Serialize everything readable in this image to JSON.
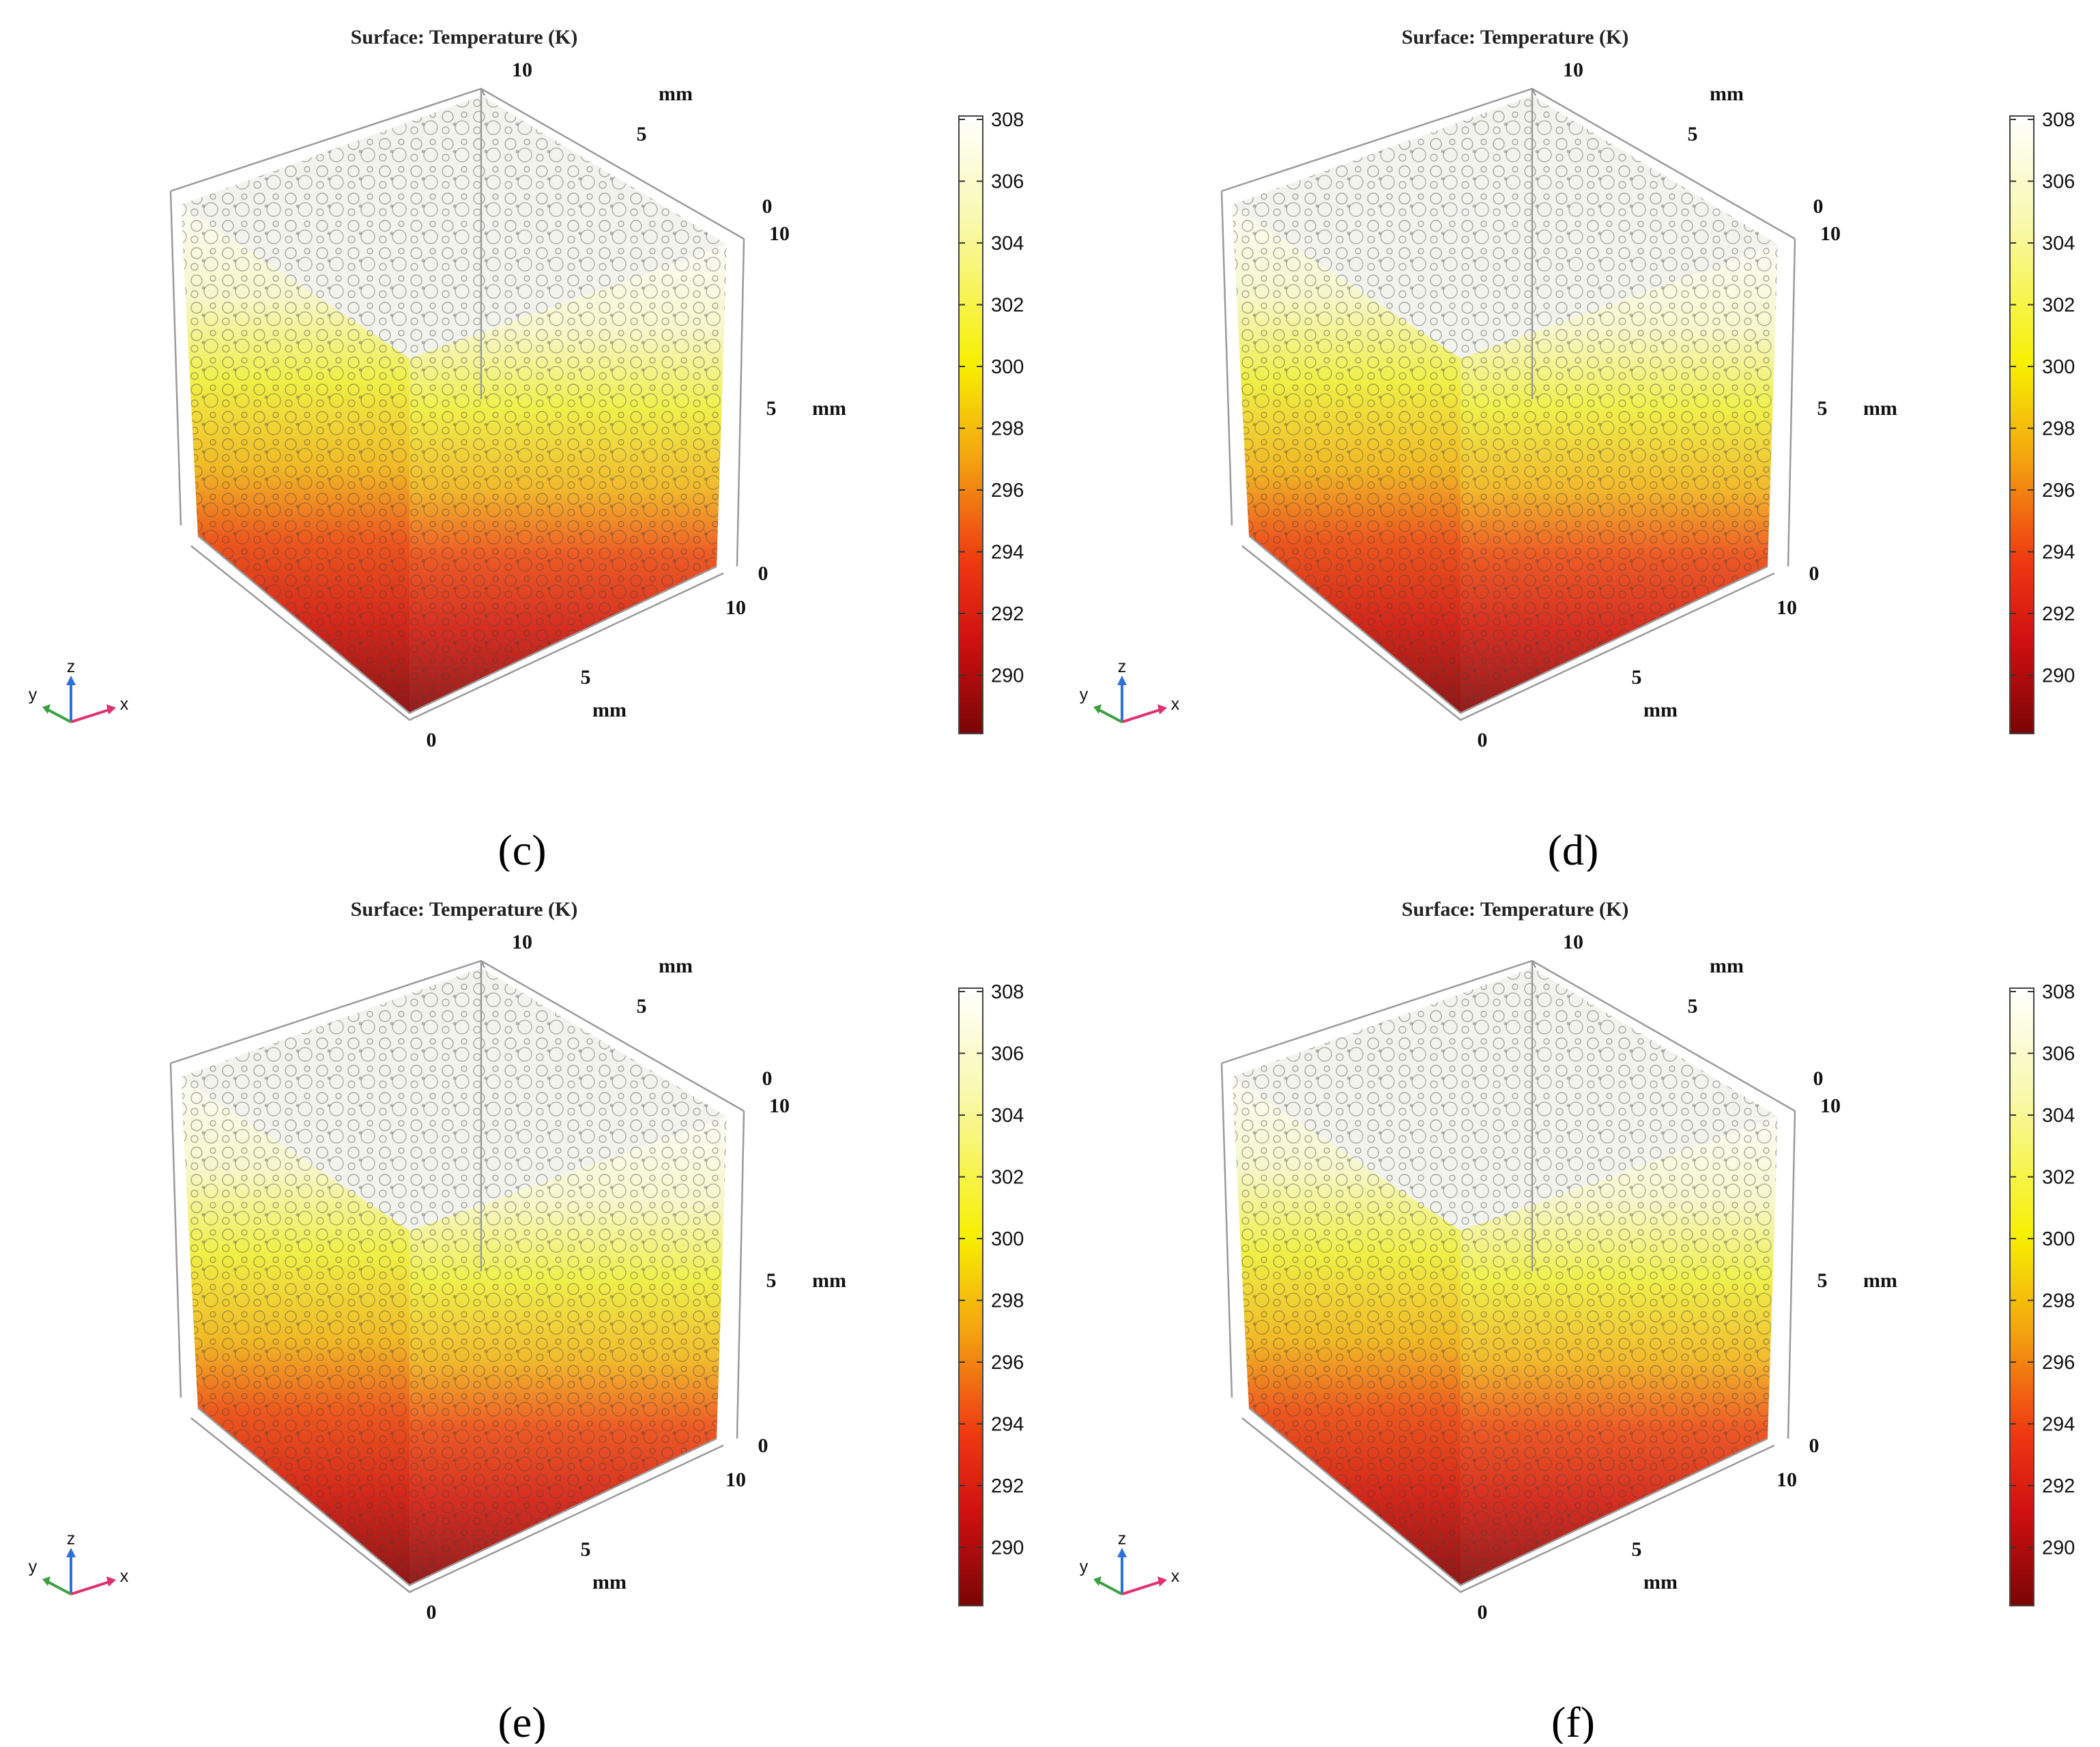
{
  "figure": {
    "panels": [
      {
        "caption": "(c)",
        "plot_title": "Surface: Temperature (K)",
        "axis_ticks": {
          "top_x": [
            "10",
            "5"
          ],
          "top_y_unit": "mm",
          "z_top": "0",
          "z_right": [
            "10",
            "5",
            "0"
          ],
          "z_unit": "mm",
          "bottom": [
            "10",
            "5",
            "0"
          ],
          "bottom_unit": "mm"
        },
        "triad": {
          "x": "x",
          "y": "y",
          "z": "z"
        },
        "colorbar": {
          "ticks": [
            "308",
            "306",
            "304",
            "302",
            "300",
            "298",
            "296",
            "294",
            "292",
            "290"
          ]
        }
      },
      {
        "caption": "(d)",
        "plot_title": "Surface: Temperature (K)",
        "axis_ticks": {
          "top_x": [
            "10",
            "5"
          ],
          "top_y_unit": "mm",
          "z_top": "0",
          "z_right": [
            "10",
            "5",
            "0"
          ],
          "z_unit": "mm",
          "bottom": [
            "10",
            "5",
            "0"
          ],
          "bottom_unit": "mm"
        },
        "triad": {
          "x": "x",
          "y": "y",
          "z": "z"
        },
        "colorbar": {
          "ticks": [
            "308",
            "306",
            "304",
            "302",
            "300",
            "298",
            "296",
            "294",
            "292",
            "290"
          ]
        }
      },
      {
        "caption": "(e)",
        "plot_title": "Surface: Temperature (K)",
        "axis_ticks": {
          "top_x": [
            "10",
            "5"
          ],
          "top_y_unit": "mm",
          "z_top": "0",
          "z_right": [
            "10",
            "5",
            "0"
          ],
          "z_unit": "mm",
          "bottom": [
            "10",
            "5",
            "0"
          ],
          "bottom_unit": "mm"
        },
        "triad": {
          "x": "x",
          "y": "y",
          "z": "z"
        },
        "colorbar": {
          "ticks": [
            "308",
            "306",
            "304",
            "302",
            "300",
            "298",
            "296",
            "294",
            "292",
            "290"
          ]
        }
      },
      {
        "caption": "(f)",
        "plot_title": "Surface: Temperature (K)",
        "axis_ticks": {
          "top_x": [
            "10",
            "5"
          ],
          "top_y_unit": "mm",
          "z_top": "0",
          "z_right": [
            "10",
            "5",
            "0"
          ],
          "z_unit": "mm",
          "bottom": [
            "10",
            "5",
            "0"
          ],
          "bottom_unit": "mm"
        },
        "triad": {
          "x": "x",
          "y": "y",
          "z": "z"
        },
        "colorbar": {
          "ticks": [
            "308",
            "306",
            "304",
            "302",
            "300",
            "298",
            "296",
            "294",
            "292",
            "290"
          ]
        }
      }
    ],
    "colors": {
      "hot_white": "#fbfbf4",
      "yellow": "#f4f000",
      "orange": "#f08a0a",
      "red": "#e51a10",
      "dark_red": "#8a0a0a"
    }
  }
}
